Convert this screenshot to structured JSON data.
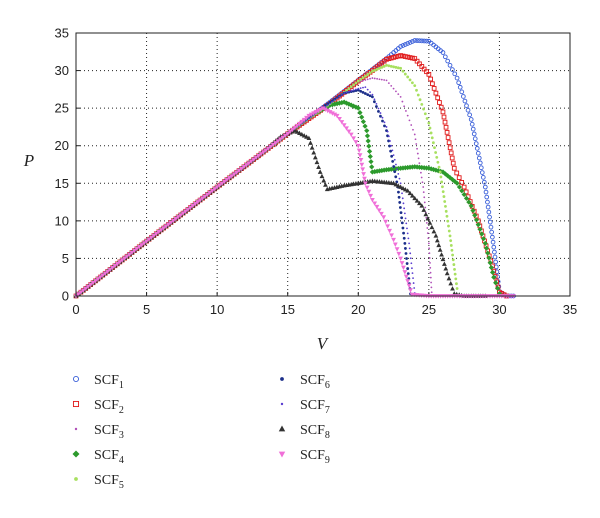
{
  "chart_data": {
    "type": "scatter",
    "title": "",
    "xlabel": "V",
    "ylabel": "P",
    "xlim": [
      0,
      35
    ],
    "ylim": [
      0,
      35
    ],
    "xticks": [
      0,
      5,
      10,
      15,
      20,
      25,
      30,
      35
    ],
    "yticks": [
      0,
      5,
      10,
      15,
      20,
      25,
      30,
      35
    ],
    "grid": true,
    "legend_placement": "bottom, two columns",
    "series": [
      {
        "name": "SCF1",
        "base": "SCF",
        "sub": "1",
        "color": "#3a5fd9",
        "marker": "open-circle",
        "points": [
          [
            0,
            0
          ],
          [
            5,
            7.3
          ],
          [
            10,
            14.5
          ],
          [
            15,
            21.6
          ],
          [
            18,
            25.8
          ],
          [
            20,
            28.7
          ],
          [
            22,
            31.6
          ],
          [
            23,
            33.2
          ],
          [
            24,
            34.0
          ],
          [
            25,
            33.9
          ],
          [
            26,
            32.4
          ],
          [
            27,
            29.0
          ],
          [
            28,
            23.5
          ],
          [
            29,
            14.5
          ],
          [
            29.6,
            6.5
          ],
          [
            30,
            0.6
          ],
          [
            30.5,
            0
          ],
          [
            31,
            0
          ]
        ]
      },
      {
        "name": "SCF2",
        "base": "SCF",
        "sub": "2",
        "color": "#e01818",
        "marker": "open-square",
        "points": [
          [
            0,
            0
          ],
          [
            5,
            7.3
          ],
          [
            10,
            14.5
          ],
          [
            15,
            21.6
          ],
          [
            18,
            25.6
          ],
          [
            20,
            28.6
          ],
          [
            21,
            30.0
          ],
          [
            22,
            31.5
          ],
          [
            23,
            32.0
          ],
          [
            24,
            31.6
          ],
          [
            25,
            29.5
          ],
          [
            26,
            24.5
          ],
          [
            26.8,
            17.0
          ],
          [
            27.5,
            14.5
          ],
          [
            28.5,
            10.0
          ],
          [
            29.5,
            4.0
          ],
          [
            30,
            0.5
          ],
          [
            30.5,
            0
          ]
        ]
      },
      {
        "name": "SCF3",
        "base": "SCF",
        "sub": "3",
        "color": "#b04fb8",
        "marker": "small-dot",
        "points": [
          [
            0,
            0
          ],
          [
            5,
            7.3
          ],
          [
            10,
            14.5
          ],
          [
            15,
            21.6
          ],
          [
            18,
            25.6
          ],
          [
            20,
            28.5
          ],
          [
            21,
            29.0
          ],
          [
            22,
            28.7
          ],
          [
            23,
            26.5
          ],
          [
            24,
            21.5
          ],
          [
            24.6,
            14.5
          ],
          [
            25,
            7.0
          ],
          [
            25.2,
            0.5
          ]
        ]
      },
      {
        "name": "SCF4",
        "base": "SCF",
        "sub": "4",
        "color": "#2c9a2c",
        "marker": "filled-diamond",
        "points": [
          [
            0,
            0
          ],
          [
            5,
            7.3
          ],
          [
            10,
            14.5
          ],
          [
            15,
            21.6
          ],
          [
            16.5,
            23.8
          ],
          [
            18,
            25.4
          ],
          [
            19,
            25.8
          ],
          [
            20,
            25.0
          ],
          [
            20.6,
            22.0
          ],
          [
            21,
            16.5
          ],
          [
            22,
            16.8
          ],
          [
            24,
            17.2
          ],
          [
            25,
            17.0
          ],
          [
            26,
            16.5
          ],
          [
            27,
            15.0
          ],
          [
            28,
            12.0
          ],
          [
            29,
            7.0
          ],
          [
            29.6,
            2.5
          ],
          [
            30,
            0.3
          ]
        ]
      },
      {
        "name": "SCF5",
        "base": "SCF",
        "sub": "5",
        "color": "#a8e060",
        "marker": "filled-dot",
        "points": [
          [
            0,
            0
          ],
          [
            5,
            7.3
          ],
          [
            10,
            14.5
          ],
          [
            15,
            21.6
          ],
          [
            18,
            25.6
          ],
          [
            20,
            28.6
          ],
          [
            21,
            29.9
          ],
          [
            22,
            30.7
          ],
          [
            23,
            30.3
          ],
          [
            24,
            28.0
          ],
          [
            25,
            23.0
          ],
          [
            25.8,
            16.5
          ],
          [
            26.5,
            8.0
          ],
          [
            27,
            1.0
          ]
        ]
      },
      {
        "name": "SCF6",
        "base": "SCF",
        "sub": "6",
        "color": "#1c2f8a",
        "marker": "filled-dot",
        "points": [
          [
            0,
            0
          ],
          [
            5,
            7.3
          ],
          [
            10,
            14.5
          ],
          [
            15,
            21.6
          ],
          [
            17,
            24.5
          ],
          [
            18,
            25.8
          ],
          [
            19,
            27.0
          ],
          [
            20,
            27.4
          ],
          [
            21,
            26.5
          ],
          [
            22,
            22.0
          ],
          [
            22.8,
            14.5
          ],
          [
            23.3,
            7.0
          ],
          [
            23.7,
            0.3
          ]
        ]
      },
      {
        "name": "SCF7",
        "base": "SCF",
        "sub": "7",
        "color": "#5a3dd0",
        "marker": "small-dot",
        "points": [
          [
            0,
            0
          ],
          [
            5,
            7.3
          ],
          [
            10,
            14.5
          ],
          [
            15,
            21.6
          ],
          [
            18,
            25.6
          ],
          [
            19,
            27.0
          ],
          [
            20,
            27.6
          ],
          [
            20.5,
            27.8
          ],
          [
            21,
            26.8
          ],
          [
            22,
            22.5
          ],
          [
            23,
            15.0
          ],
          [
            23.6,
            7.0
          ],
          [
            24,
            0.4
          ]
        ]
      },
      {
        "name": "SCF8",
        "base": "SCF",
        "sub": "8",
        "color": "#333333",
        "marker": "filled-triangle",
        "points": [
          [
            0,
            0
          ],
          [
            5,
            7.3
          ],
          [
            10,
            14.5
          ],
          [
            13,
            18.8
          ],
          [
            14.5,
            21.2
          ],
          [
            15.5,
            22.0
          ],
          [
            16.5,
            21.0
          ],
          [
            17.3,
            16.5
          ],
          [
            17.8,
            14.2
          ],
          [
            19,
            14.7
          ],
          [
            21,
            15.3
          ],
          [
            22.5,
            15.0
          ],
          [
            23.5,
            14.0
          ],
          [
            24.5,
            12.0
          ],
          [
            25.5,
            8.0
          ],
          [
            26.3,
            3.0
          ],
          [
            26.8,
            0.3
          ],
          [
            27.5,
            0
          ],
          [
            29,
            0
          ]
        ]
      },
      {
        "name": "SCF9",
        "base": "SCF",
        "sub": "9",
        "color": "#f06fd8",
        "marker": "filled-triangle-down",
        "points": [
          [
            0,
            0
          ],
          [
            5,
            7.3
          ],
          [
            10,
            14.5
          ],
          [
            15,
            21.6
          ],
          [
            16.5,
            24.0
          ],
          [
            17.5,
            25.0
          ],
          [
            18.5,
            24.0
          ],
          [
            19.5,
            21.5
          ],
          [
            20,
            20.0
          ],
          [
            20.5,
            15.0
          ],
          [
            21,
            12.8
          ],
          [
            21.8,
            10.5
          ],
          [
            22.5,
            7.5
          ],
          [
            23,
            5.0
          ],
          [
            23.5,
            2.0
          ],
          [
            23.8,
            0.2
          ],
          [
            25,
            0
          ],
          [
            27,
            0
          ],
          [
            29,
            0
          ],
          [
            31,
            0
          ]
        ]
      }
    ]
  }
}
